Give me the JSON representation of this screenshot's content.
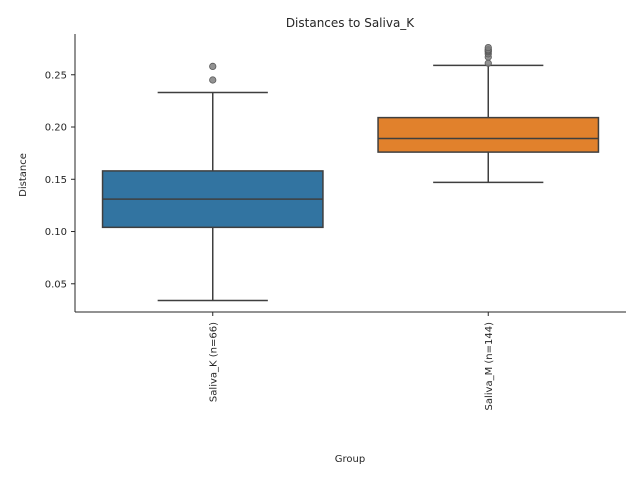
{
  "chart_data": {
    "type": "box",
    "title": "Distances to Saliva_K",
    "xlabel": "Group",
    "ylabel": "Distance",
    "ylim": [
      0.023,
      0.289
    ],
    "yticks": [
      0.05,
      0.1,
      0.15,
      0.2,
      0.25
    ],
    "ytick_labels": [
      "0.05",
      "0.10",
      "0.15",
      "0.20",
      "0.25"
    ],
    "grid": false,
    "categories": [
      "Saliva_K (n=66)",
      "Saliva_M (n=144)"
    ],
    "boxes": [
      {
        "name": "Saliva_K (n=66)",
        "color": "#3274a1",
        "whisker_low": 0.034,
        "q1": 0.104,
        "median": 0.131,
        "q3": 0.158,
        "whisker_high": 0.233,
        "outliers": [
          0.245,
          0.258
        ]
      },
      {
        "name": "Saliva_M (n=144)",
        "color": "#e1812c",
        "whisker_low": 0.147,
        "q1": 0.176,
        "median": 0.189,
        "q3": 0.209,
        "whisker_high": 0.259,
        "outliers": [
          0.261,
          0.267,
          0.27,
          0.272,
          0.273,
          0.274,
          0.276
        ]
      }
    ]
  }
}
